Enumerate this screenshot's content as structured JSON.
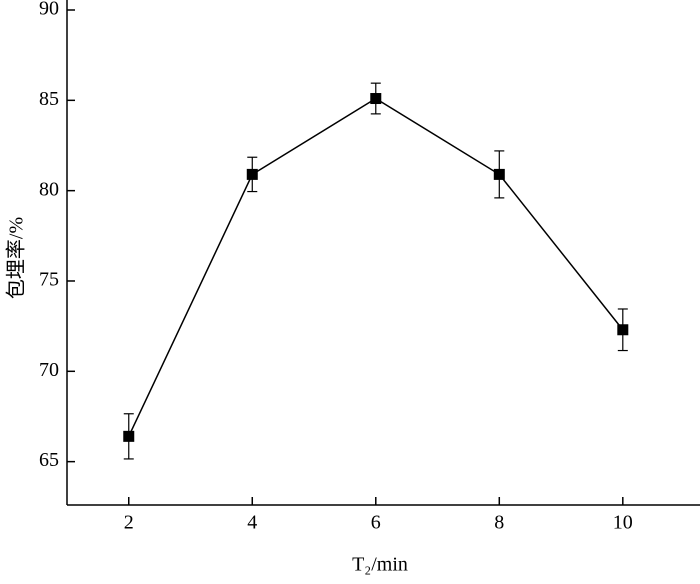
{
  "chart_data": {
    "type": "line",
    "x_label": "T₂/min",
    "y_label": "包埋率/%",
    "x": [
      2,
      4,
      6,
      8,
      10
    ],
    "xlim": [
      1,
      11.25
    ],
    "xticks": [
      2,
      4,
      6,
      8,
      10
    ],
    "ylim": [
      62.6,
      90
    ],
    "yticks": [
      65,
      70,
      75,
      80,
      85,
      90
    ],
    "series": [
      {
        "color": "#000000",
        "values": [
          66.4,
          80.9,
          85.1,
          80.9,
          72.3
        ],
        "errors": [
          1.25,
          0.95,
          0.85,
          1.3,
          1.15
        ]
      }
    ]
  }
}
